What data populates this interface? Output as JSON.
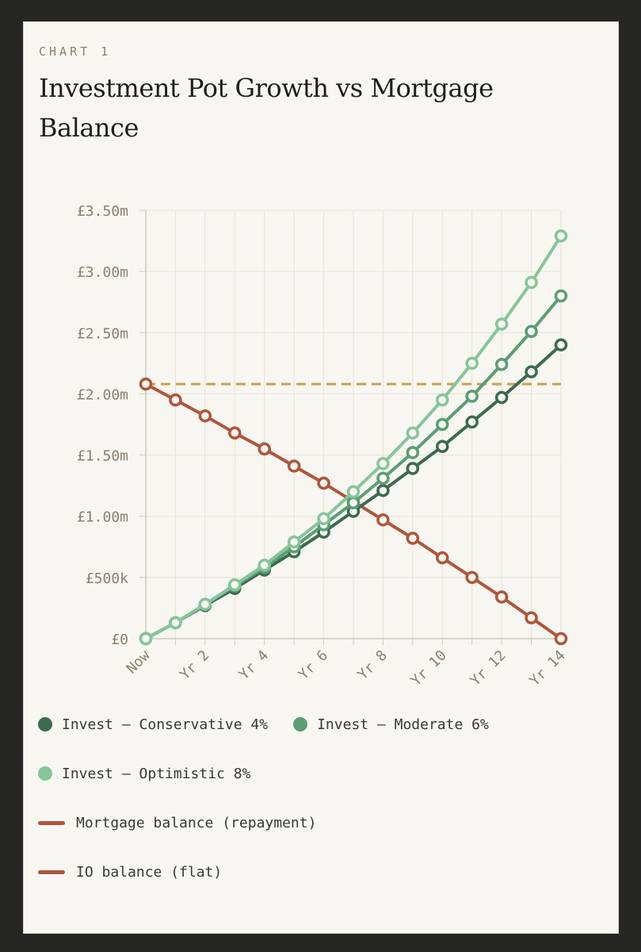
{
  "header": {
    "eyebrow": "CHART 1",
    "title": "Investment Pot Growth vs Mortgage Balance"
  },
  "chart_data": {
    "type": "line",
    "title": "Investment Pot Growth vs Mortgage Balance",
    "xlabel": "",
    "ylabel": "",
    "ylim": [
      0,
      3.5
    ],
    "x": [
      0,
      1,
      2,
      3,
      4,
      5,
      6,
      7,
      8,
      9,
      10,
      11,
      12,
      13,
      14
    ],
    "x_tick_labels": [
      "Now",
      "Yr 2",
      "Yr 4",
      "Yr 6",
      "Yr 8",
      "Yr 10",
      "Yr 12",
      "Yr 14"
    ],
    "x_tick_positions": [
      0,
      2,
      4,
      6,
      8,
      10,
      12,
      14
    ],
    "y_ticks": [
      0,
      0.5,
      1.0,
      1.5,
      2.0,
      2.5,
      3.0,
      3.5
    ],
    "y_tick_labels": [
      "£0",
      "£500k",
      "£1.00m",
      "£1.50m",
      "£2.00m",
      "£2.50m",
      "£3.00m",
      "£3.50m"
    ],
    "grid": true,
    "legend_position": "bottom",
    "series": [
      {
        "name": "Invest – Conservative 4%",
        "color": "#3b6b4f",
        "style": "line-markers",
        "values": [
          0,
          0.13,
          0.27,
          0.41,
          0.56,
          0.71,
          0.87,
          1.04,
          1.21,
          1.39,
          1.57,
          1.77,
          1.97,
          2.18,
          2.4
        ]
      },
      {
        "name": "Invest – Moderate 6%",
        "color": "#5a9e74",
        "style": "line-markers",
        "values": [
          0,
          0.13,
          0.28,
          0.43,
          0.58,
          0.75,
          0.93,
          1.11,
          1.31,
          1.52,
          1.75,
          1.98,
          2.24,
          2.51,
          2.8
        ]
      },
      {
        "name": "Invest – Optimistic 8%",
        "color": "#86c59c",
        "style": "line-markers",
        "values": [
          0,
          0.13,
          0.28,
          0.44,
          0.6,
          0.79,
          0.98,
          1.2,
          1.43,
          1.68,
          1.95,
          2.25,
          2.57,
          2.91,
          3.29
        ]
      },
      {
        "name": "Mortgage balance (repayment)",
        "color": "#b0553a",
        "style": "line-markers",
        "values": [
          2.08,
          1.95,
          1.82,
          1.68,
          1.55,
          1.41,
          1.27,
          1.12,
          0.97,
          0.82,
          0.66,
          0.5,
          0.34,
          0.17,
          0
        ]
      },
      {
        "name": "IO balance (flat)",
        "color": "#c9a24a",
        "legend_color": "#b0553a",
        "style": "dashed",
        "values": [
          2.08,
          2.08,
          2.08,
          2.08,
          2.08,
          2.08,
          2.08,
          2.08,
          2.08,
          2.08,
          2.08,
          2.08,
          2.08,
          2.08,
          2.08
        ]
      }
    ]
  }
}
